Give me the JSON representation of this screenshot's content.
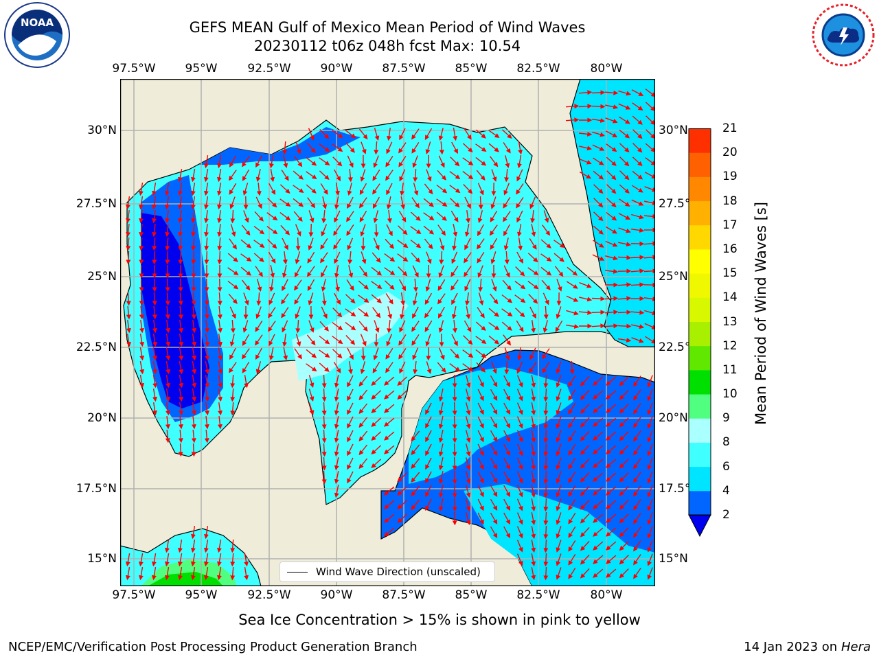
{
  "header": {
    "title_line1": "GEFS MEAN Gulf of Mexico Mean Period of Wind Waves",
    "title_line2": "20230112 t06z 048h fcst   Max: 10.54"
  },
  "logos": {
    "left": {
      "name": "NOAA",
      "ring_text": "NATIONAL OCEANIC AND ATMOSPHERIC ADMINISTRATION · U.S. DEPARTMENT OF COMMERCE"
    },
    "right": {
      "name": "NATIONAL WEATHER SERVICE"
    }
  },
  "map": {
    "lon_ticks": [
      "97.5°W",
      "95°W",
      "92.5°W",
      "90°W",
      "87.5°W",
      "85°W",
      "82.5°W",
      "80°W"
    ],
    "lat_ticks_left": [
      "30°N",
      "27.5°N",
      "25°N",
      "22.5°N",
      "20°N",
      "17.5°N",
      "15°N"
    ],
    "lat_ticks_right": [
      "30°N",
      "27.5°",
      "25°N",
      "22.5°",
      "20°N",
      "17.5°",
      "15°N"
    ],
    "extent": {
      "lon": [
        -98,
        -78.3
      ],
      "lat": [
        14,
        31.6
      ]
    },
    "land_color": "#efedda",
    "ocean_no_data_color": "#ffffff",
    "grid": true,
    "vector_color": "#ff0000",
    "legend_label": "Wind Wave Direction (unscaled)"
  },
  "colorbar": {
    "label": "Mean Period of Wind Waves [s]",
    "ticks": [
      "2",
      "4",
      "6",
      "8",
      "9",
      "10",
      "11",
      "12",
      "13",
      "14",
      "15",
      "16",
      "17",
      "18",
      "19",
      "20",
      "21"
    ],
    "colors": [
      "#0066ff",
      "#00e5ff",
      "#40ffff",
      "#aaffff",
      "#50ff80",
      "#00e000",
      "#60e800",
      "#a8f000",
      "#d8f800",
      "#f0f800",
      "#ffff00",
      "#ffd800",
      "#ffb000",
      "#ff8800",
      "#ff6000",
      "#ff3000"
    ],
    "under_color": "#0000ee"
  },
  "notes": {
    "sea_ice": "Sea Ice Concentration > 15% is shown in pink to yellow"
  },
  "footer": {
    "left": "NCEP/EMC/Verification Post Processing Product Generation Branch",
    "right_date": "14 Jan 2023 on ",
    "right_host": "Hera"
  }
}
